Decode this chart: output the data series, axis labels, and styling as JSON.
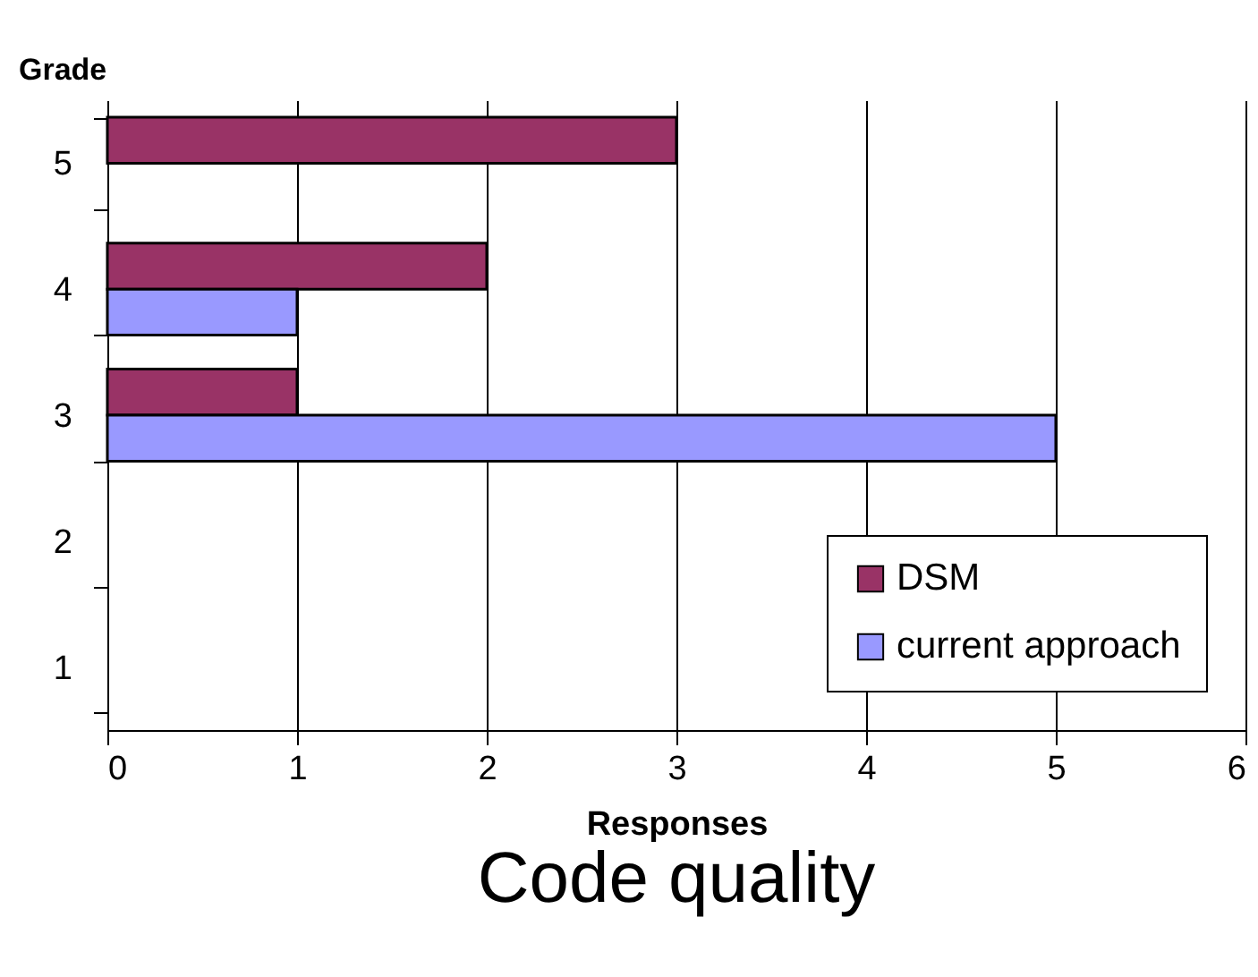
{
  "chart_data": {
    "type": "bar",
    "orientation": "horizontal",
    "title": "Code quality",
    "xlabel": "Responses",
    "ylabel": "Grade",
    "categories": [
      "5",
      "4",
      "3",
      "2",
      "1"
    ],
    "series": [
      {
        "name": "DSM",
        "color": "#993366",
        "values": [
          3,
          2,
          1,
          null,
          null
        ]
      },
      {
        "name": "current approach",
        "color": "#9999ff",
        "values": [
          null,
          1,
          5,
          null,
          null
        ]
      }
    ],
    "xlim": [
      0,
      6
    ],
    "xticks": [
      0,
      1,
      2,
      3,
      4,
      5,
      6
    ],
    "grid": "x",
    "legend": "bottom right"
  }
}
